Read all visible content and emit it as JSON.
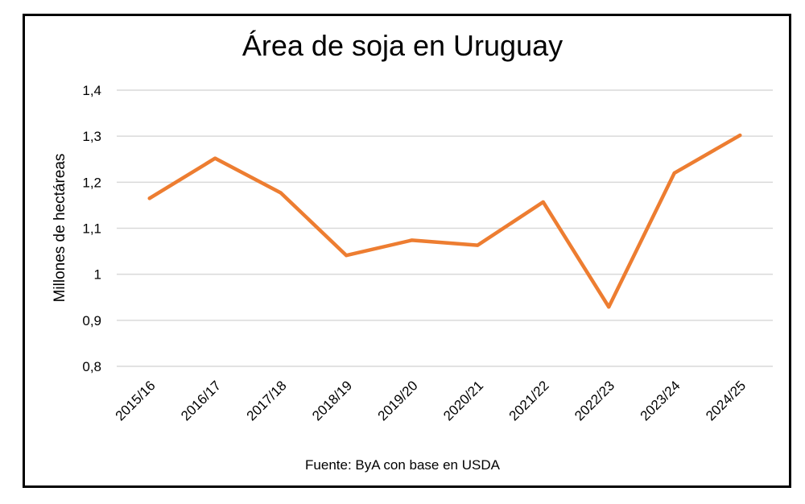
{
  "chart_data": {
    "type": "line",
    "title": "Área de soja en Uruguay",
    "xlabel": "",
    "ylabel": "Millones de hectáreas",
    "source": "Fuente: ByA con base en USDA",
    "categories": [
      "2015/16",
      "2016/17",
      "2017/18",
      "2018/19",
      "2019/20",
      "2020/21",
      "2021/22",
      "2022/23",
      "2023/24",
      "2024/25"
    ],
    "series": [
      {
        "name": "Área de soja",
        "values": [
          1.165,
          1.252,
          1.177,
          1.041,
          1.074,
          1.063,
          1.157,
          0.929,
          1.22,
          1.302
        ]
      }
    ],
    "ylim": [
      0.8,
      1.4
    ],
    "yticks": [
      0.8,
      0.9,
      1.0,
      1.1,
      1.2,
      1.3,
      1.4
    ],
    "ytick_labels": [
      "0,8",
      "0,9",
      "1",
      "1,1",
      "1,2",
      "1,3",
      "1,4"
    ],
    "grid": true,
    "line_color": "#ED7D31"
  }
}
